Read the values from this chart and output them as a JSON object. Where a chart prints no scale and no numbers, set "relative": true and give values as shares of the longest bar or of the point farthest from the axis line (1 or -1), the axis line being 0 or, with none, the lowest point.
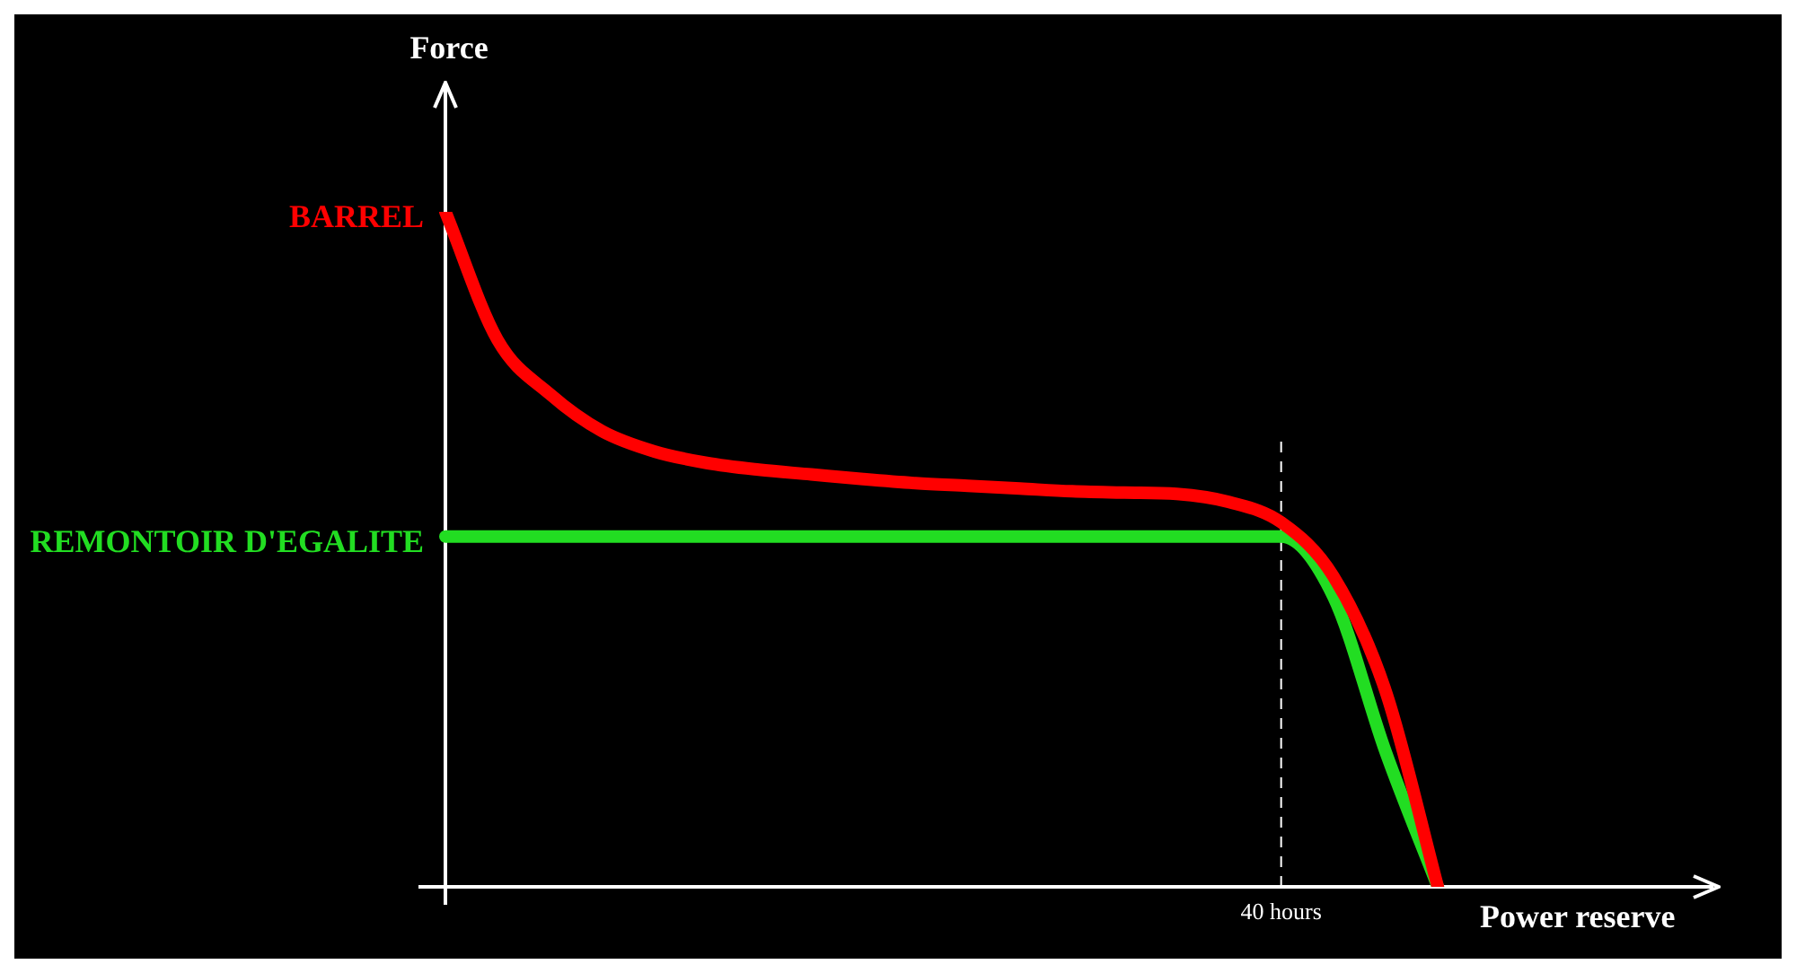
{
  "chart_data": {
    "type": "line",
    "relative": true,
    "xlabel": "Power reserve",
    "ylabel": "Force",
    "categories": [
      null,
      null,
      null,
      null,
      null,
      null,
      null,
      null,
      null,
      null,
      null,
      null,
      null,
      null,
      null,
      null,
      null,
      null,
      null,
      null,
      null,
      null,
      null,
      null,
      null
    ],
    "annotations": [
      "40 hours"
    ],
    "grid": false,
    "legend": false,
    "marker": "none",
    "line_style": "solid",
    "series": [
      {
        "name": "BARREL",
        "color": "#ff0000",
        "values": [
          1.0,
          0.81,
          0.73,
          0.675,
          0.645,
          0.628,
          0.618,
          0.611,
          0.604,
          0.598,
          0.594,
          0.59,
          0.586,
          0.584,
          0.582,
          0.57,
          0.54,
          0.46,
          0.29,
          0,
          null,
          null,
          null,
          null,
          null
        ]
      },
      {
        "name": "REMONTOIR D'EGALITE",
        "color": "#22dd22",
        "values": [
          0.519,
          0.519,
          0.519,
          0.519,
          0.519,
          0.519,
          0.519,
          0.519,
          0.519,
          0.519,
          0.519,
          0.519,
          0.519,
          0.519,
          0.519,
          0.519,
          0.519,
          0.43,
          0.2,
          0,
          null,
          null,
          null,
          null,
          null
        ]
      }
    ]
  }
}
